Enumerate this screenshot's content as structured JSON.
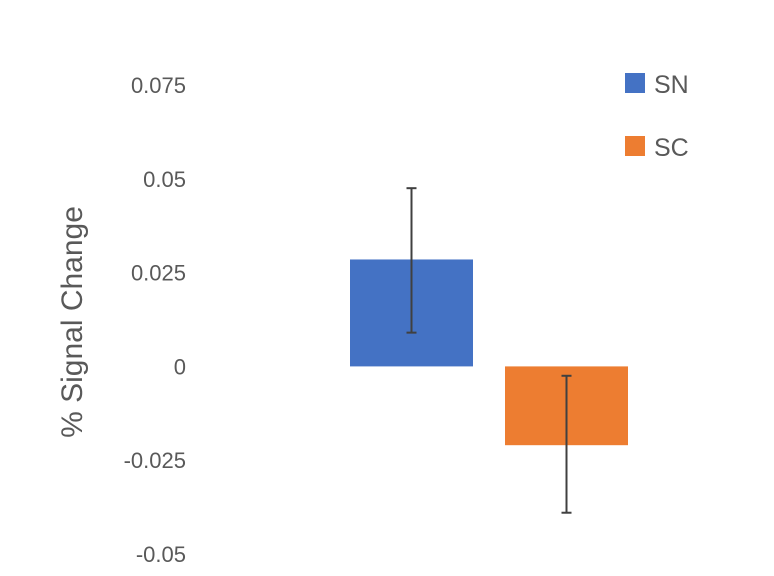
{
  "chart_data": {
    "type": "bar",
    "title": "",
    "xlabel": "",
    "ylabel": "% Signal Change",
    "ylim": [
      -0.05,
      0.075
    ],
    "yticks": [
      0.075,
      0.05,
      0.025,
      0,
      -0.025,
      -0.05
    ],
    "ytick_labels": [
      "0.075",
      "0.05",
      "0.025",
      "0",
      "-0.025",
      "-0.05"
    ],
    "grid": false,
    "legend": "top-right",
    "series": [
      {
        "name": "SN",
        "value": 0.0285,
        "error_low": 0.009,
        "error_high": 0.0475,
        "color": "#4472C4"
      },
      {
        "name": "SC",
        "value": -0.021,
        "error_low": -0.039,
        "error_high": -0.0025,
        "color": "#ED7D31"
      }
    ],
    "error_bar_color": "#404040"
  }
}
